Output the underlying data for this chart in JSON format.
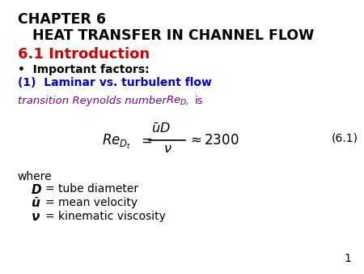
{
  "bg_color": "#ffffff",
  "black": "#000000",
  "red_title": "#cc0000",
  "blue_item": "#0000cc",
  "purple": "#7b0099",
  "chapter1": "CHAPTER 6",
  "chapter2": "HEAT TRANSFER IN CHANNEL FLOW",
  "section": "6.1 Introduction",
  "bullet": "•  Important factors:",
  "item1": "(1)  Laminar vs. turbulent flow",
  "trans_plain": "transition Reynolds number ",
  "trans_suffix": " is",
  "where": "where",
  "D_def": "= tube diameter",
  "u_def": "= mean velocity",
  "nu_def": "= kinematic viscosity",
  "eq_num": "(6.1)",
  "page": "1"
}
